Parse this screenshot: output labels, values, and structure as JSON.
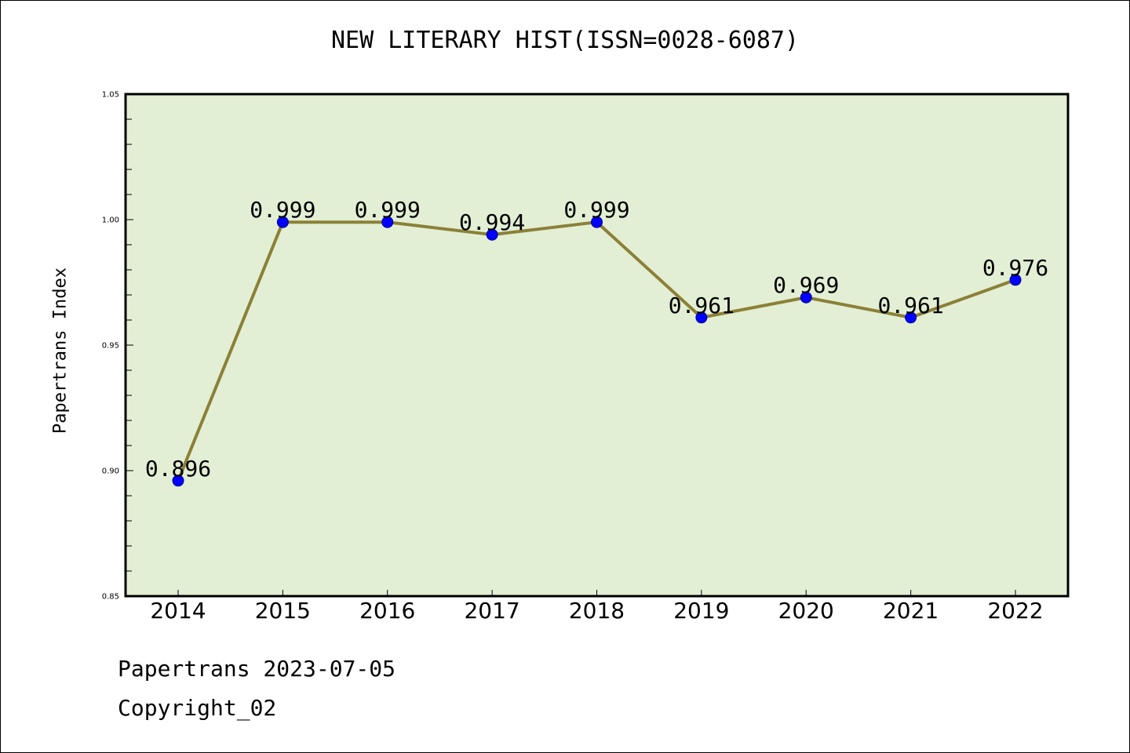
{
  "chart_data": {
    "type": "line",
    "title": "NEW LITERARY HIST(ISSN=0028-6087)",
    "xlabel": "",
    "ylabel": "Papertrans Index",
    "categories": [
      "2014",
      "2015",
      "2016",
      "2017",
      "2018",
      "2019",
      "2020",
      "2021",
      "2022"
    ],
    "series": [
      {
        "values": [
          0.896,
          0.999,
          0.999,
          0.994,
          0.999,
          0.961,
          0.969,
          0.961,
          0.976
        ]
      }
    ],
    "data_labels": [
      "0.896",
      "0.999",
      "0.999",
      "0.994",
      "0.999",
      "0.961",
      "0.969",
      "0.961",
      "0.976"
    ],
    "ylim": [
      0.85,
      1.05
    ],
    "yticks": [
      "0.85",
      "0.90",
      "0.95",
      "1.00",
      "1.05"
    ],
    "grid": false,
    "colors": {
      "plot_background": "#e2efd4",
      "line": "#8b8036",
      "marker": "#0000ff"
    }
  },
  "footer": {
    "line1": "Papertrans 2023-07-05",
    "line2": "Copyright_02"
  }
}
